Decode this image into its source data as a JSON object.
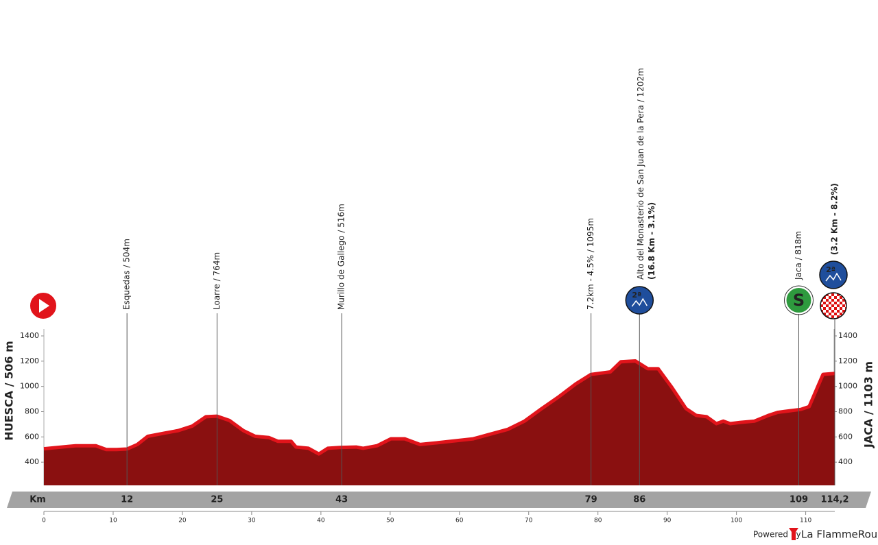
{
  "chart_data": {
    "type": "profile",
    "x": [
      0,
      3.6,
      4.6,
      7.5,
      9,
      10.5,
      12,
      13.5,
      15,
      17.4,
      19.4,
      21.4,
      23.4,
      25,
      26.8,
      28.8,
      30.5,
      32.5,
      33.8,
      35.7,
      36.4,
      38.2,
      39.7,
      41,
      42.7,
      45.1,
      46.1,
      48.1,
      50.1,
      52.1,
      54.3,
      57,
      59.5,
      62,
      64,
      67,
      69.4,
      71.9,
      74.4,
      76.8,
      79,
      81.8,
      83.3,
      85.4,
      87.2,
      88.7,
      90.7,
      92.7,
      94.2,
      95.7,
      97.1,
      98.1,
      99.1,
      100.6,
      102.6,
      104.6,
      106,
      109.3,
      110.5,
      112.5,
      114.2
    ],
    "values": [
      506,
      525,
      530,
      530,
      500,
      500,
      504,
      540,
      605,
      630,
      650,
      685,
      760,
      764,
      730,
      650,
      605,
      595,
      565,
      565,
      520,
      510,
      465,
      510,
      516,
      520,
      510,
      530,
      585,
      585,
      540,
      555,
      570,
      585,
      615,
      660,
      725,
      825,
      920,
      1020,
      1095,
      1115,
      1195,
      1202,
      1140,
      1140,
      990,
      825,
      770,
      760,
      705,
      725,
      705,
      715,
      725,
      770,
      795,
      818,
      840,
      1095,
      1103
    ],
    "color": "#8a1010",
    "edge_color": "#e1141b",
    "xlim": [
      0,
      114.2
    ],
    "xticks": [
      0,
      10,
      20,
      30,
      40,
      50,
      60,
      70,
      80,
      90,
      100,
      110
    ],
    "ylim": [
      200,
      1400
    ],
    "yticks": [
      400,
      600,
      800,
      1000,
      1200,
      1400
    ],
    "start_label": "HUESCA / 506 m",
    "finish_label": "JACA / 1103 m",
    "km_label": "Km",
    "annotations": [
      {
        "km": 12,
        "label": "Esquedas / 504m"
      },
      {
        "km": 25,
        "label": "Loarre / 764m"
      },
      {
        "km": 43,
        "label": "Murillo de Gallego / 516m"
      },
      {
        "km": 79,
        "label": "7.2km - 4.5% / 1095m"
      },
      {
        "km": 86,
        "label": "Alto del Monasterio de San Juan de la Pera / 1202m",
        "note": "(16.8 Km - 3.1%)",
        "badge": "2ª"
      },
      {
        "km": 109,
        "label": "Jaca / 818m",
        "badge": "S"
      },
      {
        "km": {
          "value": 114.2,
          "label": "114,2"
        },
        "note": "(3.2 Km - 8.2%)",
        "badge": "2ª"
      }
    ],
    "footer": {
      "powered": "Powered by",
      "brand": "La FlammeRouge"
    }
  }
}
